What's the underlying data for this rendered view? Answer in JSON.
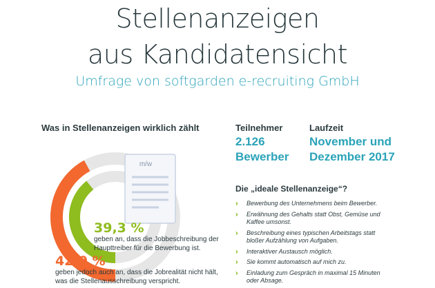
{
  "header": {
    "title_line1": "Stellenanzeigen",
    "title_line2": "aus Kandidatensicht",
    "subtitle": "Umfrage von softgarden e-recruiting GmbH"
  },
  "section_title": "Was in Stellenanzeigen wirklich zählt",
  "icon": {
    "doc_label": "m/w"
  },
  "chart_data": {
    "type": "pie",
    "variant": "concentric-donut",
    "series": [
      {
        "value": 39.3,
        "label": "39,3 %",
        "description": "geben an, dass die Jobbeschreibung der Haupttreiber für die Bewerbung ist.",
        "color": "#8fbc1f"
      },
      {
        "value": 42.0,
        "label": "42,0 %",
        "description": "geben jedoch auch an, dass die Jobrealität nicht hält, was die Stellenausschreibung verspricht.",
        "color": "#f2682f"
      }
    ],
    "track_color": "#e6e6e6"
  },
  "stats": {
    "teilnehmer_label": "Teilnehmer",
    "teilnehmer_value_line1": "2.126",
    "teilnehmer_value_line2": "Bewerber",
    "laufzeit_label": "Laufzeit",
    "laufzeit_value_line1": "November und",
    "laufzeit_value_line2": "Dezember 2017"
  },
  "ideal": {
    "title": "Die „ideale Stellenanzeige“?",
    "items": [
      "Bewerbung des Unternehmens beim Bewerber.",
      "Erwähnung des Gehalts statt Obst, Gemüse und Kaffee umsonst.",
      "Beschreibung eines typischen Arbeitstags statt bloßer Aufzählung von Aufgaben.",
      "Interaktiver Austausch möglich.",
      "Sie kommt automatisch auf mich zu.",
      "Einladung zum Gespräch in maximal 15 Minuten oder Absage."
    ]
  },
  "colors": {
    "accent_teal": "#2aa3b8",
    "green": "#8fbc1f",
    "orange": "#f2682f",
    "text": "#2b3a3e"
  }
}
